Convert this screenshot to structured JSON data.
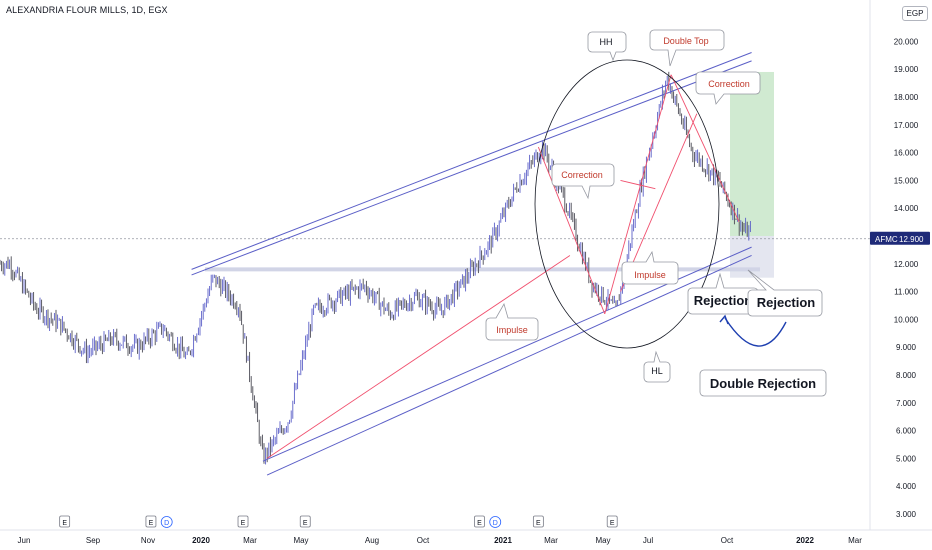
{
  "header": {
    "symbol_title": "ALEXANDRIA FLOUR MILLS, 1D, EGX",
    "currency": "EGP"
  },
  "price_tag": {
    "ticker": "AFMC",
    "value": "12.900"
  },
  "colors": {
    "candle": "#5b5fc7",
    "channel": "#5b5fc7",
    "trend": "#f0506e",
    "annotation_text": "#c0392b",
    "target_zone": "#c8e6c9",
    "stop_zone": "#e1e3ee",
    "curve": "#1e3fb0",
    "price_tag_bg": "#1e2a78"
  },
  "chart_data": {
    "type": "line",
    "title": "ALEXANDRIA FLOUR MILLS, 1D, EGX",
    "ylabel": "",
    "xlabel": "",
    "ylim": [
      2.5,
      20.6
    ],
    "y_ticks": [
      3,
      4,
      5,
      6,
      7,
      8,
      9,
      10,
      11,
      12,
      13,
      14,
      15,
      16,
      17,
      18,
      19,
      20
    ],
    "y_tick_labels": [
      "3.000",
      "4.000",
      "5.000",
      "6.000",
      "7.000",
      "8.000",
      "9.000",
      "10.000",
      "11.000",
      "12.000",
      "13.000",
      "14.000",
      "15.000",
      "16.000",
      "17.000",
      "18.000",
      "19.000",
      "20.000"
    ],
    "x_tick_labels": [
      "Jun",
      "Sep",
      "Nov",
      "2020",
      "Mar",
      "May",
      "Aug",
      "Oct",
      "2021",
      "Mar",
      "May",
      "Jul",
      "Oct",
      "2022",
      "Mar"
    ],
    "x_tick_bold": [
      "2020",
      "2021",
      "2022"
    ],
    "series": [
      {
        "x": [
          "2019-05",
          "2019-06",
          "2019-07",
          "2019-08",
          "2019-09",
          "2019-10",
          "2019-11",
          "2019-12",
          "2020-01",
          "2020-02",
          "2020-03",
          "2020-04",
          "2020-05",
          "2020-06",
          "2020-07",
          "2020-08",
          "2020-09",
          "2020-10",
          "2020-11",
          "2020-12",
          "2021-01",
          "2021-02",
          "2021-03",
          "2021-04",
          "2021-05",
          "2021-06",
          "2021-07",
          "2021-08",
          "2021-09",
          "2021-10",
          "2021-11"
        ],
        "values": [
          12.0,
          10.4,
          9.8,
          8.8,
          9.3,
          9.0,
          9.7,
          8.6,
          11.5,
          10.5,
          5.0,
          6.4,
          10.3,
          10.8,
          11.2,
          10.2,
          10.8,
          10.3,
          11.5,
          12.8,
          14.8,
          16.2,
          14.2,
          11.3,
          10.3,
          15.0,
          18.7,
          16.0,
          15.0,
          13.2,
          12.9
        ]
      }
    ],
    "current_price": 12.9,
    "channel": {
      "upper": [
        [
          "2019-12-20",
          11.8
        ],
        [
          "2021-10-25",
          19.6
        ]
      ],
      "middle": [
        [
          "2020-03-15",
          4.9
        ],
        [
          "2021-10-25",
          12.6
        ]
      ],
      "lower": [
        [
          "2020-03-20",
          4.4
        ],
        [
          "2021-10-25",
          12.3
        ]
      ]
    },
    "annotations": [
      "HH",
      "Double Top",
      "Correction",
      "Correction",
      "Impulse",
      "Impulse",
      "Rejection",
      "Rejection",
      "HL",
      "Double Rejection"
    ],
    "event_markers": [
      {
        "date": "2019-07-20",
        "label": "E"
      },
      {
        "date": "2019-11-01",
        "label": "E"
      },
      {
        "date": "2019-11-20",
        "label": "D"
      },
      {
        "date": "2020-02-20",
        "label": "E"
      },
      {
        "date": "2020-05-05",
        "label": "E"
      },
      {
        "date": "2020-12-01",
        "label": "E"
      },
      {
        "date": "2020-12-20",
        "label": "D"
      },
      {
        "date": "2021-02-10",
        "label": "E"
      },
      {
        "date": "2021-05-10",
        "label": "E"
      }
    ],
    "grid": false,
    "legend": "none"
  },
  "labels": {
    "hh": "HH",
    "double_top": "Double Top",
    "correction_right": "Correction",
    "correction_left": "Correction",
    "impulse_mid": "Impulse",
    "impulse_left": "Impulse",
    "rejection_1": "Rejection",
    "rejection_2": "Rejection",
    "hl": "HL",
    "double_rejection": "Double Rejection"
  }
}
